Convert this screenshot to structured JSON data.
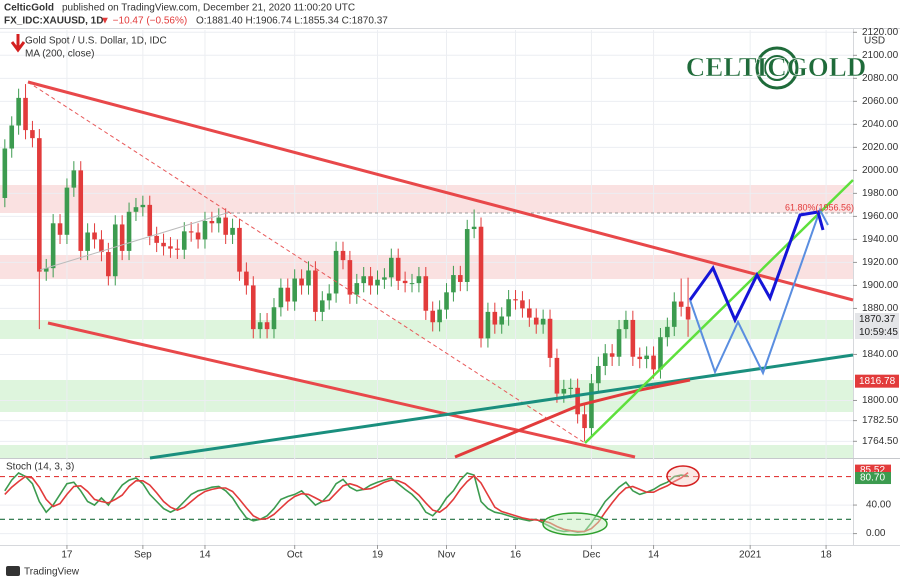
{
  "header": {
    "publisher": "CelticGold",
    "published": "published on TradingView.com, December 21, 2020 11:00:20 UTC",
    "symbol": "FX_IDC:XAUUSD, 1D",
    "change": "▼ −10.47 (−0.56%)",
    "ohlc": "O:1881.40 H:1906.74 L:1855.34 C:1870.37"
  },
  "logo": "CELTICGOLD",
  "footer": "TradingView",
  "chart_data": [
    {
      "type": "candlestick",
      "title": "Gold Spot / U.S. Dollar, 1D, IDC",
      "ma_label": "MA (200, close)",
      "currency": "USD",
      "annotations": [
        "61.80%(1956.56)"
      ],
      "last_price": {
        "value": 1870.37,
        "label": "1870.37"
      },
      "countdown": "10:59:45",
      "ma_value": {
        "value": 1816.78,
        "label": "1816.78"
      },
      "up_color": "#3c9b4f",
      "down_color": "#e23b3b",
      "grid": true,
      "ylim": [
        1750,
        2122
      ],
      "xlim": [
        -0.7,
        122.9
      ],
      "yticks": [
        {
          "value": 2120,
          "label": "2120.00"
        },
        {
          "value": 2100,
          "label": "2100.00"
        },
        {
          "value": 2080,
          "label": "2080.00"
        },
        {
          "value": 2060,
          "label": "2060.00"
        },
        {
          "value": 2040,
          "label": "2040.00"
        },
        {
          "value": 2020,
          "label": "2020.00"
        },
        {
          "value": 2000,
          "label": "2000.00"
        },
        {
          "value": 1980,
          "label": "1980.00"
        },
        {
          "value": 1960,
          "label": "1960.00"
        },
        {
          "value": 1940,
          "label": "1940.00"
        },
        {
          "value": 1920,
          "label": "1920.00"
        },
        {
          "value": 1900,
          "label": "1900.00"
        },
        {
          "value": 1880,
          "label": "1880.00"
        },
        {
          "value": 1840,
          "label": "1840.00"
        },
        {
          "value": 1800,
          "label": "1800.00"
        },
        {
          "value": 1782.5,
          "label": "1782.50"
        },
        {
          "value": 1764.5,
          "label": "1764.50"
        }
      ],
      "xticks": [
        {
          "value": 9,
          "label": "17"
        },
        {
          "value": 20,
          "label": "Sep"
        },
        {
          "value": 29,
          "label": "14"
        },
        {
          "value": 42,
          "label": "Oct"
        },
        {
          "value": 54,
          "label": "19"
        },
        {
          "value": 64,
          "label": "Nov"
        },
        {
          "value": 74,
          "label": "16"
        },
        {
          "value": 85,
          "label": "Dec"
        },
        {
          "value": 94,
          "label": "14"
        },
        {
          "value": 108,
          "label": "2021"
        },
        {
          "value": 119,
          "label": "18"
        }
      ],
      "open": [
        1976,
        2019,
        2039,
        2063,
        2035,
        2028,
        1912,
        1915,
        1954,
        1944,
        1985,
        2000,
        1930,
        1946,
        1940,
        1929,
        1908,
        1953,
        1930,
        1964,
        1968,
        1970,
        1943,
        1937,
        1934,
        1932,
        1931,
        1947,
        1946,
        1940,
        1956,
        1954,
        1959,
        1944,
        1950,
        1912,
        1900,
        1862,
        1868,
        1862,
        1881,
        1898,
        1886,
        1906,
        1900,
        1913,
        1877,
        1887,
        1893,
        1930,
        1922,
        1892,
        1902,
        1908,
        1900,
        1905,
        1907,
        1924,
        1904,
        1902,
        1902,
        1908,
        1878,
        1868,
        1879,
        1894,
        1909,
        1903,
        1949,
        1951,
        1854,
        1877,
        1866,
        1873,
        1888,
        1887,
        1880,
        1872,
        1866,
        1871,
        1837,
        1806,
        1810,
        1811,
        1788,
        1776,
        1815,
        1830,
        1841,
        1838,
        1862,
        1870,
        1838,
        1836,
        1839,
        1827,
        1855,
        1864,
        1886,
        1881.4
      ],
      "high": [
        2027,
        2047,
        2071,
        2075,
        2043,
        2036,
        1923,
        1962,
        1962,
        1993,
        2008,
        2008,
        1954,
        1954,
        1948,
        1937,
        1961,
        1961,
        1972,
        1976,
        1978,
        1978,
        1951,
        1945,
        1942,
        1940,
        1955,
        1955,
        1954,
        1964,
        1964,
        1967,
        1967,
        1958,
        1958,
        1920,
        1908,
        1876,
        1876,
        1889,
        1906,
        1906,
        1914,
        1914,
        1921,
        1921,
        1895,
        1901,
        1938,
        1938,
        1930,
        1910,
        1916,
        1916,
        1913,
        1915,
        1932,
        1932,
        1912,
        1910,
        1916,
        1916,
        1886,
        1887,
        1902,
        1917,
        1917,
        1957,
        1966,
        1959,
        1885,
        1885,
        1881,
        1896,
        1896,
        1895,
        1888,
        1880,
        1879,
        1879,
        1845,
        1818,
        1819,
        1819,
        1796,
        1823,
        1838,
        1849,
        1849,
        1870,
        1878,
        1878,
        1846,
        1847,
        1847,
        1863,
        1872,
        1894,
        1906,
        1906.74
      ],
      "low": [
        1968,
        2011,
        2031,
        2027,
        2020,
        1862,
        1904,
        1907,
        1936,
        1936,
        1977,
        1922,
        1922,
        1932,
        1921,
        1900,
        1900,
        1922,
        1922,
        1956,
        1960,
        1935,
        1929,
        1926,
        1924,
        1923,
        1923,
        1938,
        1932,
        1932,
        1946,
        1946,
        1936,
        1936,
        1904,
        1892,
        1854,
        1854,
        1854,
        1854,
        1873,
        1878,
        1878,
        1892,
        1892,
        1869,
        1869,
        1879,
        1885,
        1914,
        1884,
        1884,
        1894,
        1892,
        1892,
        1897,
        1899,
        1896,
        1894,
        1894,
        1894,
        1870,
        1860,
        1860,
        1871,
        1886,
        1895,
        1895,
        1941,
        1846,
        1846,
        1858,
        1858,
        1865,
        1879,
        1872,
        1864,
        1858,
        1858,
        1829,
        1798,
        1798,
        1802,
        1780,
        1764.5,
        1768,
        1807,
        1822,
        1830,
        1830,
        1854,
        1830,
        1828,
        1828,
        1819,
        1819,
        1847,
        1856,
        1873,
        1855.34
      ],
      "close": [
        2019,
        2039,
        2063,
        2035,
        2028,
        1912,
        1915,
        1954,
        1944,
        1985,
        2000,
        1930,
        1946,
        1940,
        1929,
        1908,
        1953,
        1930,
        1964,
        1968,
        1970,
        1943,
        1937,
        1934,
        1932,
        1931,
        1947,
        1946,
        1940,
        1956,
        1954,
        1959,
        1944,
        1950,
        1912,
        1900,
        1862,
        1868,
        1862,
        1881,
        1898,
        1886,
        1906,
        1900,
        1913,
        1877,
        1887,
        1893,
        1930,
        1922,
        1892,
        1902,
        1908,
        1900,
        1905,
        1907,
        1924,
        1904,
        1902,
        1902,
        1908,
        1878,
        1868,
        1879,
        1894,
        1909,
        1903,
        1949,
        1951,
        1854,
        1877,
        1866,
        1873,
        1888,
        1887,
        1880,
        1872,
        1866,
        1871,
        1837,
        1806,
        1810,
        1811,
        1788,
        1776,
        1815,
        1830,
        1841,
        1838,
        1862,
        1870,
        1838,
        1836,
        1839,
        1827,
        1855,
        1864,
        1886,
        1881.4,
        1870.37
      ]
    },
    {
      "type": "line",
      "title": "Stoch (14, 3, 3)",
      "ylim": [
        -16,
        106
      ],
      "xlim": [
        -0.7,
        122.9
      ],
      "grid": true,
      "yticks": [
        {
          "value": 40,
          "label": "40.00"
        },
        {
          "value": 0,
          "label": "0.00"
        }
      ],
      "levels": [
        {
          "value": 80,
          "color": "#e23b3b"
        },
        {
          "value": 20,
          "color": "#1e6e3e"
        }
      ],
      "last_labels": [
        {
          "value": 85.52,
          "label": "85.52",
          "color": "#e23b3b"
        },
        {
          "value": 80.7,
          "label": "80.70",
          "color": "#3c9b4f"
        }
      ],
      "series": [
        {
          "color": "#3c9b4f",
          "values": [
            60,
            75,
            85,
            80,
            70,
            45,
            30,
            40,
            55,
            70,
            72,
            60,
            45,
            40,
            50,
            40,
            55,
            68,
            75,
            78,
            70,
            55,
            45,
            35,
            30,
            35,
            45,
            55,
            60,
            62,
            65,
            66,
            60,
            50,
            35,
            22,
            18,
            20,
            25,
            35,
            48,
            52,
            55,
            60,
            50,
            40,
            45,
            55,
            70,
            76,
            65,
            60,
            62,
            68,
            72,
            75,
            78,
            70,
            62,
            55,
            45,
            30,
            25,
            35,
            50,
            60,
            75,
            85,
            82,
            45,
            35,
            30,
            28,
            25,
            22,
            20,
            18,
            20,
            15,
            10,
            5,
            3,
            4,
            2,
            3,
            15,
            30,
            45,
            55,
            65,
            72,
            60,
            55,
            58,
            62,
            68,
            72,
            80,
            82,
            80.7
          ]
        },
        {
          "color": "#e23b3b",
          "values": [
            55,
            65,
            73,
            80,
            78,
            65,
            48,
            38,
            42,
            55,
            66,
            67,
            59,
            48,
            45,
            43,
            48,
            54,
            66,
            74,
            74,
            68,
            57,
            45,
            37,
            33,
            37,
            45,
            53,
            59,
            62,
            64,
            64,
            59,
            48,
            36,
            25,
            20,
            21,
            27,
            36,
            45,
            52,
            56,
            55,
            50,
            45,
            47,
            57,
            67,
            70,
            67,
            62,
            63,
            67,
            72,
            75,
            74,
            70,
            62,
            54,
            43,
            33,
            30,
            37,
            48,
            62,
            73,
            81,
            71,
            54,
            37,
            31,
            28,
            25,
            22,
            20,
            19,
            18,
            15,
            10,
            6,
            4,
            3,
            3,
            7,
            16,
            30,
            43,
            55,
            64,
            66,
            62,
            58,
            58,
            63,
            67,
            73,
            78,
            85.52
          ]
        }
      ]
    }
  ]
}
